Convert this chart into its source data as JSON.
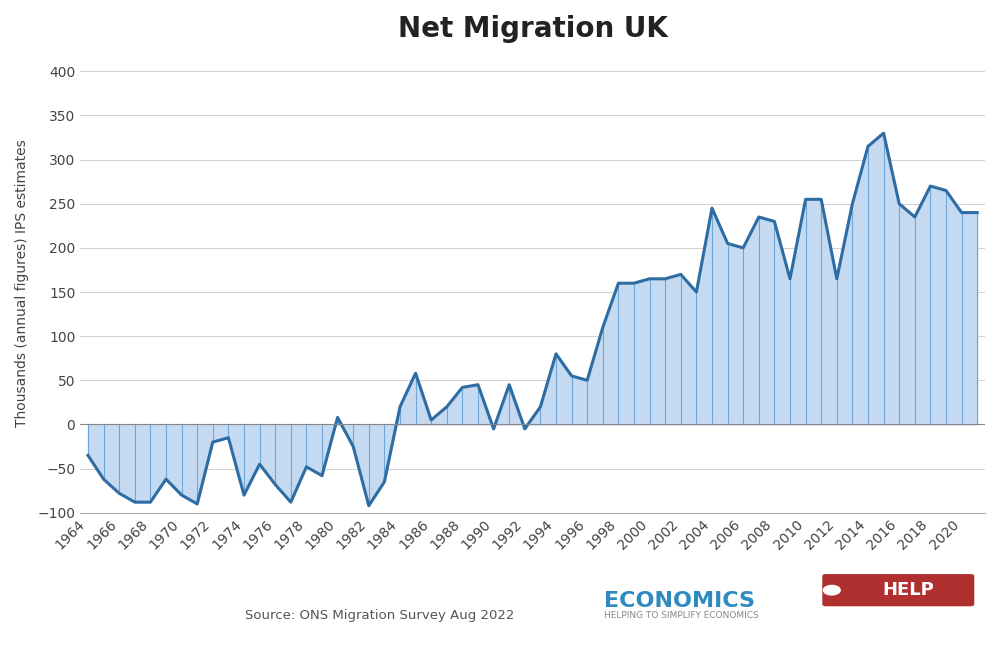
{
  "title": "Net Migration UK",
  "ylabel": "Thousands (annual figures) IPS estimates",
  "source": "Source: ONS Migration Survey Aug 2022",
  "background_color": "#ffffff",
  "line_color": "#2e6da4",
  "fill_color": "#c5d9f0",
  "vline_color": "#6fa8d6",
  "hgrid_color": "#d0d0d0",
  "ylim": [
    -100,
    420
  ],
  "yticks": [
    -100,
    -50,
    0,
    50,
    100,
    150,
    200,
    250,
    300,
    350,
    400
  ],
  "years": [
    1964,
    1965,
    1966,
    1967,
    1968,
    1969,
    1970,
    1971,
    1972,
    1973,
    1974,
    1975,
    1976,
    1977,
    1978,
    1979,
    1980,
    1981,
    1982,
    1983,
    1984,
    1985,
    1986,
    1987,
    1988,
    1989,
    1990,
    1991,
    1992,
    1993,
    1994,
    1995,
    1996,
    1997,
    1998,
    1999,
    2000,
    2001,
    2002,
    2003,
    2004,
    2005,
    2006,
    2007,
    2008,
    2009,
    2010,
    2011,
    2012,
    2013,
    2014,
    2015,
    2016,
    2017,
    2018,
    2019,
    2020,
    2021
  ],
  "values": [
    -35,
    -62,
    -78,
    -88,
    -88,
    -62,
    -80,
    -90,
    -20,
    -15,
    -80,
    -45,
    -68,
    -88,
    -48,
    -58,
    8,
    -25,
    -92,
    -65,
    20,
    58,
    5,
    20,
    42,
    45,
    -5,
    45,
    -5,
    20,
    80,
    55,
    50,
    110,
    160,
    160,
    165,
    165,
    170,
    150,
    245,
    205,
    200,
    235,
    230,
    165,
    255,
    255,
    165,
    250,
    315,
    330,
    250,
    235,
    270,
    265,
    240,
    240
  ],
  "title_fontsize": 20,
  "ylabel_fontsize": 10,
  "tick_fontsize": 10,
  "logo_text1": "ECONOMICS",
  "logo_text2": "HELP",
  "logo_subtext": "HELPING TO SIMPLIFY ECONOMICS"
}
